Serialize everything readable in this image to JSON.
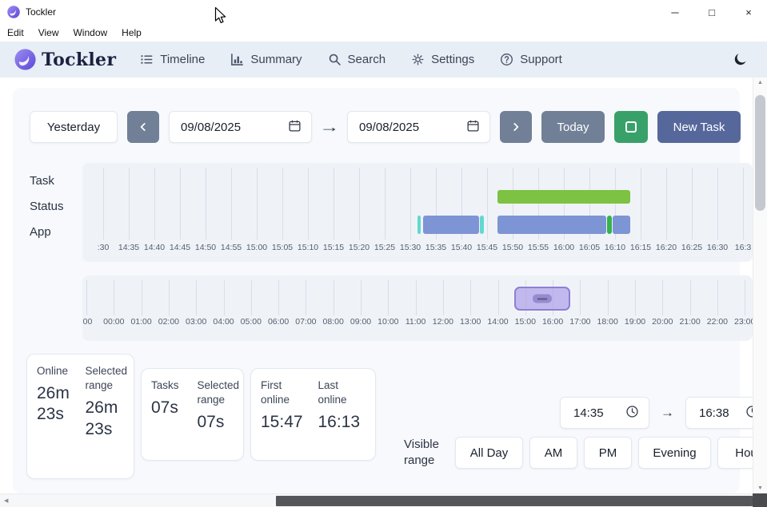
{
  "window": {
    "title": "Tockler",
    "controls": {
      "minimize": "─",
      "maximize": "□",
      "close": "×"
    },
    "menu_items": [
      "Edit",
      "View",
      "Window",
      "Help"
    ]
  },
  "header": {
    "brand": "Tockler",
    "nav": [
      {
        "label": "Timeline"
      },
      {
        "label": "Summary"
      },
      {
        "label": "Search"
      },
      {
        "label": "Settings"
      },
      {
        "label": "Support"
      }
    ]
  },
  "toolbar": {
    "yesterday": "Yesterday",
    "start_date": "09/08/2025",
    "end_date": "09/08/2025",
    "today": "Today",
    "new_task": "New Task"
  },
  "stats": {
    "online": {
      "label": "Online",
      "value": "26m 23s",
      "range_label": "Selected range",
      "range_value": "26m 23s"
    },
    "tasks": {
      "label": "Tasks",
      "value": "07s",
      "range_label": "Selected range",
      "range_value": "07s"
    },
    "first": {
      "label": "First online",
      "value": "15:47"
    },
    "last": {
      "label": "Last online",
      "value": "16:13"
    }
  },
  "visible_range": {
    "label": "Visible range",
    "from": "14:35",
    "to": "16:38",
    "presets": [
      "All Day",
      "AM",
      "PM",
      "Evening",
      "Hou"
    ]
  },
  "colors": {
    "gray_button": "#718096",
    "green_button": "#38a169",
    "new_task_button": "#56689b",
    "status_green": "#7dc242",
    "app_blue": "#7d95d5",
    "app_teal": "#63d8cf",
    "brush_purple": "#a594e6",
    "header_bg": "#e8eef6"
  },
  "chart_data": [
    {
      "type": "timeline",
      "rows": [
        "Task",
        "Status",
        "App"
      ],
      "x_range": [
        "14:30",
        "16:38"
      ],
      "tick_interval_minutes": 5,
      "ticks": [
        ":30",
        "14:35",
        "14:40",
        "14:45",
        "14:50",
        "14:55",
        "15:00",
        "15:05",
        "15:10",
        "15:15",
        "15:20",
        "15:25",
        "15:30",
        "15:35",
        "15:40",
        "15:45",
        "15:50",
        "15:55",
        "16:00",
        "16:05",
        "16:10",
        "16:15",
        "16:20",
        "16:25",
        "16:30",
        "16:3"
      ],
      "bars": [
        {
          "row": "Status",
          "start": "15:47",
          "end": "16:13",
          "color": "#7dc242"
        },
        {
          "row": "App",
          "start": "15:31:20",
          "end": "15:32:00",
          "color": "#63d8cf"
        },
        {
          "row": "App",
          "start": "15:32:30",
          "end": "15:43:30",
          "color": "#7d95d5"
        },
        {
          "row": "App",
          "start": "15:43:40",
          "end": "15:44:20",
          "color": "#63d8cf"
        },
        {
          "row": "App",
          "start": "15:47:00",
          "end": "16:08:20",
          "color": "#7d95d5"
        },
        {
          "row": "App",
          "start": "16:08:30",
          "end": "16:09:20",
          "color": "#37b24d"
        },
        {
          "row": "App",
          "start": "16:09:30",
          "end": "16:13:00",
          "color": "#7d95d5"
        }
      ]
    },
    {
      "type": "timeline-minimap",
      "x_range": [
        "00:00",
        "24:00"
      ],
      "ticks": [
        ":00",
        "00:00",
        "01:00",
        "02:00",
        "03:00",
        "04:00",
        "05:00",
        "06:00",
        "07:00",
        "08:00",
        "09:00",
        "10:00",
        "11:00",
        "12:00",
        "13:00",
        "14:00",
        "15:00",
        "16:00",
        "17:00",
        "18:00",
        "19:00",
        "20:00",
        "21:00",
        "22:00",
        "23:00"
      ],
      "brush": {
        "start": "14:35",
        "end": "16:38"
      }
    }
  ]
}
